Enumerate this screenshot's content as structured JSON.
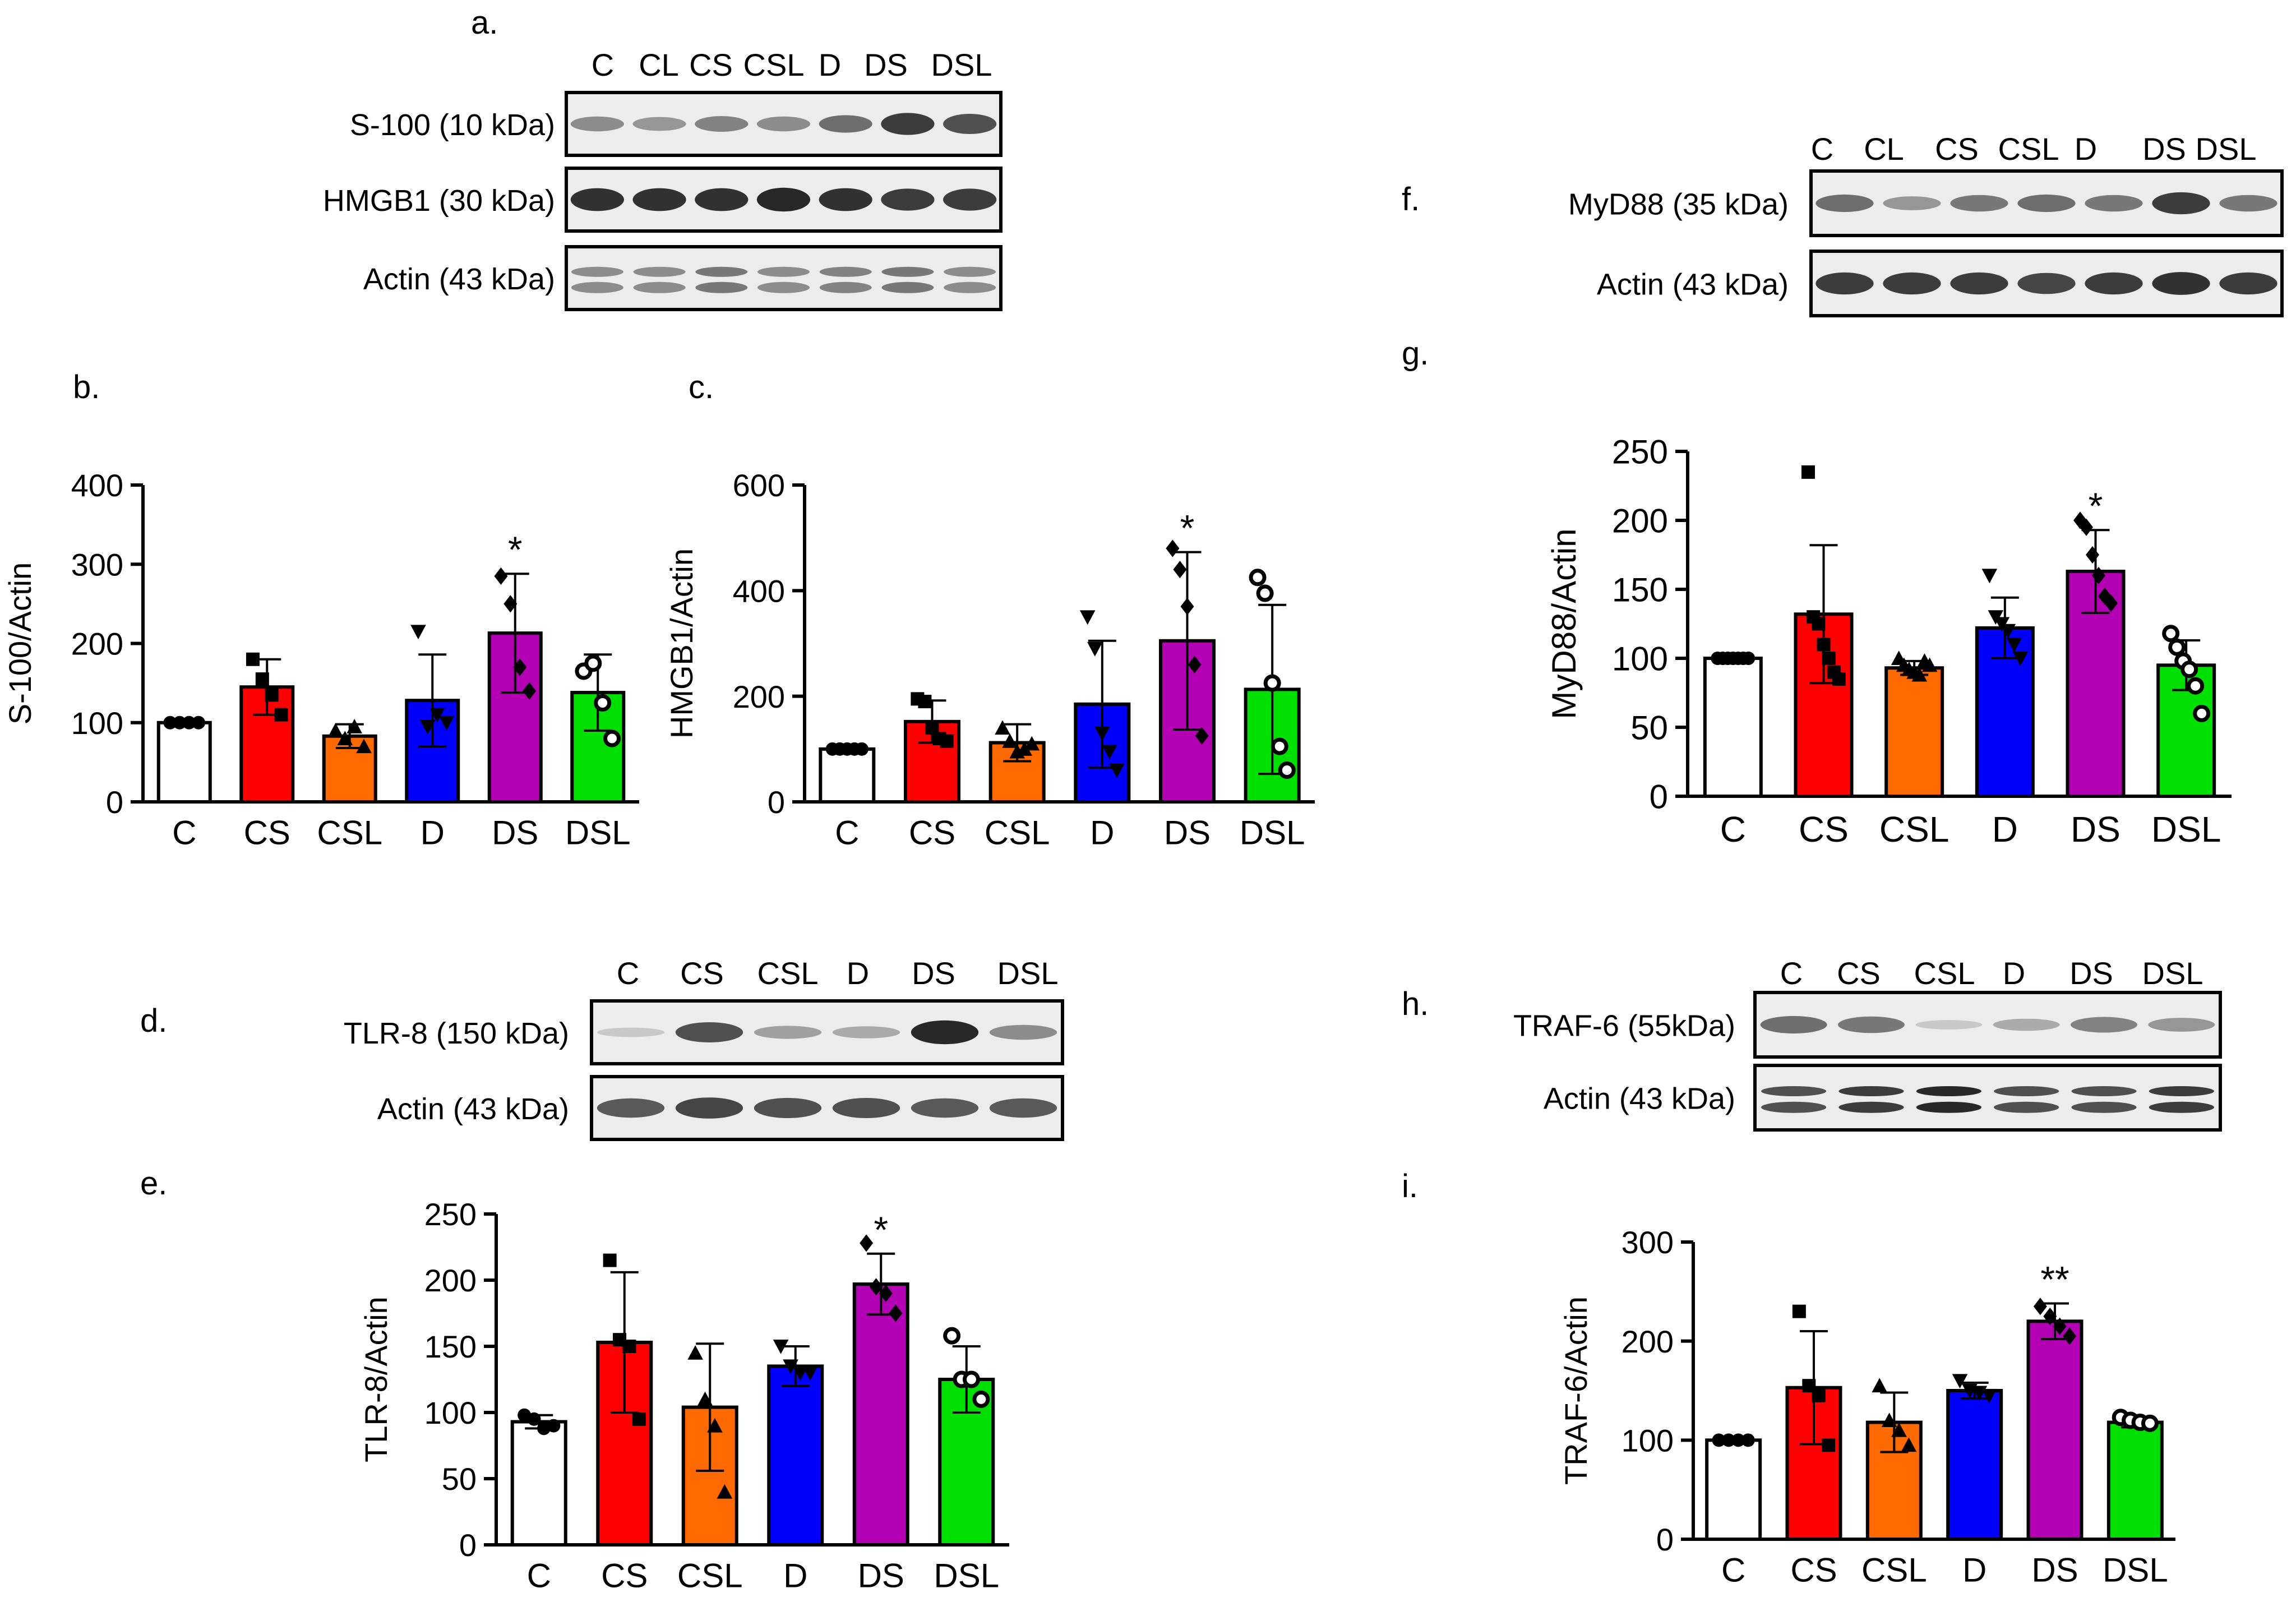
{
  "panel_letters": {
    "a": "a.",
    "b": "b.",
    "c": "c.",
    "d": "d.",
    "e": "e.",
    "f": "f.",
    "g": "g.",
    "h": "h.",
    "i": "i."
  },
  "blots": {
    "a": {
      "lanes": [
        "C",
        "CL",
        "CS",
        "CSL",
        "D",
        "DS",
        "DSL"
      ],
      "rows": [
        {
          "label": "S-100 (10 kDa)",
          "intensities": [
            0.45,
            0.4,
            0.5,
            0.45,
            0.6,
            0.85,
            0.75
          ],
          "double": false
        },
        {
          "label": "HMGB1 (30 kDa)",
          "intensities": [
            0.9,
            0.9,
            0.9,
            0.95,
            0.9,
            0.85,
            0.85
          ],
          "double": false
        },
        {
          "label": "Actin (43 kDa)",
          "intensities": [
            0.45,
            0.45,
            0.55,
            0.45,
            0.5,
            0.55,
            0.45
          ],
          "double": true
        }
      ]
    },
    "d": {
      "lanes": [
        "C",
        "CS",
        "CSL",
        "D",
        "DS",
        "DSL"
      ],
      "rows": [
        {
          "label": "TLR-8 (150 kDa)",
          "intensities": [
            0.15,
            0.75,
            0.35,
            0.3,
            0.95,
            0.45
          ],
          "double": false
        },
        {
          "label": "Actin (43 kDa)",
          "intensities": [
            0.7,
            0.8,
            0.75,
            0.75,
            0.7,
            0.7
          ],
          "double": false
        }
      ]
    },
    "f": {
      "lanes": [
        "C",
        "CL",
        "CS",
        "CSL",
        "D",
        "DS",
        "DSL"
      ],
      "rows": [
        {
          "label": "MyD88 (35 kDa)",
          "intensities": [
            0.6,
            0.4,
            0.55,
            0.6,
            0.55,
            0.85,
            0.55
          ],
          "double": false
        },
        {
          "label": "Actin (43 kDa)",
          "intensities": [
            0.85,
            0.85,
            0.85,
            0.8,
            0.85,
            0.9,
            0.85
          ],
          "double": false
        }
      ]
    },
    "h": {
      "lanes": [
        "C",
        "CS",
        "CSL",
        "D",
        "DS",
        "DSL"
      ],
      "rows": [
        {
          "label": "TRAF-6 (55kDa)",
          "intensities": [
            0.6,
            0.55,
            0.15,
            0.3,
            0.5,
            0.4
          ],
          "double": false
        },
        {
          "label": "Actin (43 kDa)",
          "intensities": [
            0.75,
            0.85,
            0.95,
            0.75,
            0.75,
            0.85
          ],
          "double": true
        }
      ]
    }
  },
  "chart_data": [
    {
      "id": "b",
      "type": "bar",
      "title": "",
      "xlabel": "",
      "ylabel": "S-100/Actin",
      "categories": [
        "C",
        "CS",
        "CSL",
        "D",
        "DS",
        "DSL"
      ],
      "values": [
        100,
        145,
        83,
        128,
        213,
        138
      ],
      "errors": [
        0,
        35,
        15,
        58,
        75,
        48
      ],
      "ylim": [
        0,
        400
      ],
      "yticks": [
        0,
        100,
        200,
        300,
        400
      ],
      "colors": [
        "#ffffff",
        "#ff0000",
        "#ff6a00",
        "#0000ff",
        "#b400b4",
        "#00e000"
      ],
      "markers": [
        "circle",
        "square",
        "triangle",
        "triangle-down",
        "diamond",
        "circle-open"
      ],
      "points": [
        [
          100,
          100,
          100,
          100
        ],
        [
          180,
          155,
          135,
          110
        ],
        [
          90,
          80,
          95,
          70
        ],
        [
          215,
          95,
          110,
          100
        ],
        [
          285,
          250,
          170,
          140
        ],
        [
          165,
          175,
          125,
          80
        ]
      ],
      "significance": [
        "",
        "",
        "",
        "",
        "*",
        ""
      ]
    },
    {
      "id": "c",
      "type": "bar",
      "title": "",
      "xlabel": "",
      "ylabel": "HMGB1/Actin",
      "categories": [
        "C",
        "CS",
        "CSL",
        "D",
        "DS",
        "DSL"
      ],
      "values": [
        100,
        152,
        112,
        185,
        305,
        213
      ],
      "errors": [
        0,
        40,
        35,
        120,
        168,
        160
      ],
      "ylim": [
        0,
        600
      ],
      "yticks": [
        0,
        200,
        400,
        600
      ],
      "colors": [
        "#ffffff",
        "#ff0000",
        "#ff6a00",
        "#0000ff",
        "#b400b4",
        "#00e000"
      ],
      "markers": [
        "circle",
        "square",
        "triangle",
        "triangle-down",
        "diamond",
        "circle-open"
      ],
      "points": [
        [
          100,
          100,
          100,
          100,
          100
        ],
        [
          195,
          190,
          140,
          120,
          115
        ],
        [
          140,
          115,
          95,
          100,
          110
        ],
        [
          350,
          290,
          130,
          95,
          60
        ],
        [
          480,
          440,
          370,
          260,
          125
        ],
        [
          425,
          395,
          225,
          105,
          60
        ]
      ],
      "significance": [
        "",
        "",
        "",
        "",
        "*",
        ""
      ]
    },
    {
      "id": "e",
      "type": "bar",
      "title": "",
      "xlabel": "",
      "ylabel": "TLR-8/Actin",
      "categories": [
        "C",
        "CS",
        "CSL",
        "D",
        "DS",
        "DSL"
      ],
      "values": [
        93,
        153,
        104,
        135,
        197,
        125
      ],
      "errors": [
        5,
        53,
        48,
        15,
        23,
        25
      ],
      "ylim": [
        0,
        250
      ],
      "yticks": [
        0,
        50,
        100,
        150,
        200,
        250
      ],
      "colors": [
        "#ffffff",
        "#ff0000",
        "#ff6a00",
        "#0000ff",
        "#b400b4",
        "#00e000"
      ],
      "markers": [
        "circle",
        "square",
        "triangle",
        "triangle-down",
        "diamond",
        "circle-open"
      ],
      "points": [
        [
          98,
          95,
          88,
          90
        ],
        [
          215,
          155,
          150,
          95
        ],
        [
          145,
          110,
          90,
          40
        ],
        [
          150,
          135,
          130,
          130
        ],
        [
          228,
          195,
          190,
          175
        ],
        [
          158,
          125,
          125,
          110
        ]
      ],
      "significance": [
        "",
        "",
        "",
        "",
        "*",
        ""
      ]
    },
    {
      "id": "g",
      "type": "bar",
      "title": "",
      "xlabel": "",
      "ylabel": "MyD88/Actin",
      "categories": [
        "C",
        "CS",
        "CSL",
        "D",
        "DS",
        "DSL"
      ],
      "values": [
        100,
        132,
        93,
        122,
        163,
        95
      ],
      "errors": [
        0,
        50,
        5,
        22,
        30,
        18
      ],
      "ylim": [
        0,
        250
      ],
      "yticks": [
        0,
        50,
        100,
        150,
        200,
        250
      ],
      "colors": [
        "#ffffff",
        "#ff0000",
        "#ff6a00",
        "#0000ff",
        "#b400b4",
        "#00e000"
      ],
      "markers": [
        "circle",
        "square",
        "triangle",
        "triangle-down",
        "diamond",
        "circle-open"
      ],
      "points": [
        [
          100,
          100,
          100,
          100,
          100,
          100,
          100
        ],
        [
          235,
          130,
          125,
          110,
          100,
          90,
          85
        ],
        [
          100,
          95,
          92,
          90,
          88,
          98,
          95
        ],
        [
          160,
          130,
          125,
          120,
          110,
          100
        ],
        [
          200,
          195,
          175,
          160,
          145,
          140
        ],
        [
          118,
          108,
          98,
          92,
          80,
          60
        ]
      ],
      "significance": [
        "",
        "",
        "",
        "",
        "*",
        ""
      ]
    },
    {
      "id": "i",
      "type": "bar",
      "title": "",
      "xlabel": "",
      "ylabel": "TRAF-6/Actin",
      "categories": [
        "C",
        "CS",
        "CSL",
        "D",
        "DS",
        "DSL"
      ],
      "values": [
        100,
        153,
        118,
        150,
        220,
        118
      ],
      "errors": [
        0,
        57,
        30,
        8,
        18,
        5
      ],
      "ylim": [
        0,
        300
      ],
      "yticks": [
        0,
        100,
        200,
        300
      ],
      "colors": [
        "#ffffff",
        "#ff0000",
        "#ff6a00",
        "#0000ff",
        "#b400b4",
        "#00e000"
      ],
      "markers": [
        "circle",
        "square",
        "triangle",
        "triangle-down",
        "diamond",
        "circle-open"
      ],
      "points": [
        [
          100,
          100,
          100,
          100
        ],
        [
          230,
          155,
          145,
          95
        ],
        [
          155,
          120,
          110,
          95
        ],
        [
          160,
          150,
          148,
          145
        ],
        [
          235,
          225,
          215,
          205
        ],
        [
          123,
          120,
          118,
          117
        ]
      ],
      "significance": [
        "",
        "",
        "",
        "",
        "**",
        ""
      ]
    }
  ]
}
